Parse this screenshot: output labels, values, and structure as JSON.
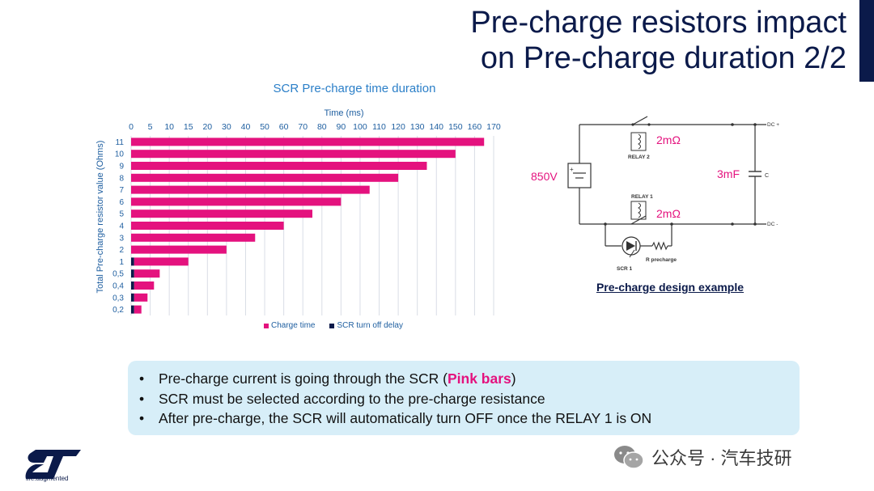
{
  "slide": {
    "title_line1": "Pre-charge resistors impact",
    "title_line2": "on Pre-charge duration 2/2"
  },
  "chart_data": {
    "type": "bar",
    "orientation": "horizontal",
    "stacked": true,
    "title": "SCR Pre-charge time duration",
    "xlabel": "Time (ms)",
    "ylabel": "Total Pre-charge resistor value (Ohms)",
    "x_ticks": [
      0,
      5,
      10,
      15,
      20,
      30,
      40,
      50,
      60,
      70,
      80,
      90,
      100,
      110,
      120,
      130,
      140,
      150,
      160,
      170
    ],
    "xlim": [
      0,
      170
    ],
    "categories": [
      "11",
      "10",
      "9",
      "8",
      "7",
      "6",
      "5",
      "4",
      "3",
      "2",
      "1",
      "0,5",
      "0,4",
      "0,3",
      "0,2"
    ],
    "series": [
      {
        "name": "SCR turn off delay",
        "color": "#0b1a4a",
        "values": [
          0,
          0,
          0,
          0,
          0,
          0,
          0,
          0,
          0,
          0,
          0.8,
          0.8,
          0.8,
          0.8,
          0.8
        ]
      },
      {
        "name": "Charge time",
        "color": "#e4127e",
        "values": [
          165,
          150,
          135,
          120,
          105,
          90,
          75,
          60,
          45,
          30,
          14.2,
          6.7,
          5.2,
          3.5,
          1.9
        ]
      }
    ],
    "legend_position": "bottom",
    "grid": "vertical"
  },
  "circuit": {
    "source_label": "850V",
    "relay2_value": "2mΩ",
    "relay2_label": "RELAY 2",
    "relay1_value": "2mΩ",
    "relay1_label": "RELAY 1",
    "cap_value": "3mF",
    "cap_label": "C",
    "dc_plus": "DC +",
    "dc_minus": "DC -",
    "scr_label": "SCR 1",
    "r_label": "R precharge",
    "caption": "Pre-charge design example"
  },
  "bullets": {
    "b1_pre": "Pre-charge current is going through the SCR (",
    "b1_highlight": "Pink bars",
    "b1_post": ")",
    "b2": "SCR must be selected according to the pre-charge resistance",
    "b3": "After pre-charge, the SCR will automatically turn OFF once the RELAY 1 is ON"
  },
  "brand": {
    "tagline": "life.augmented",
    "primary_color": "#0b1a4a",
    "accent_color": "#e4127e",
    "logo": "st-logo"
  },
  "watermark": {
    "icon": "wechat-icon",
    "text": "公众号 · 汽车技研"
  }
}
